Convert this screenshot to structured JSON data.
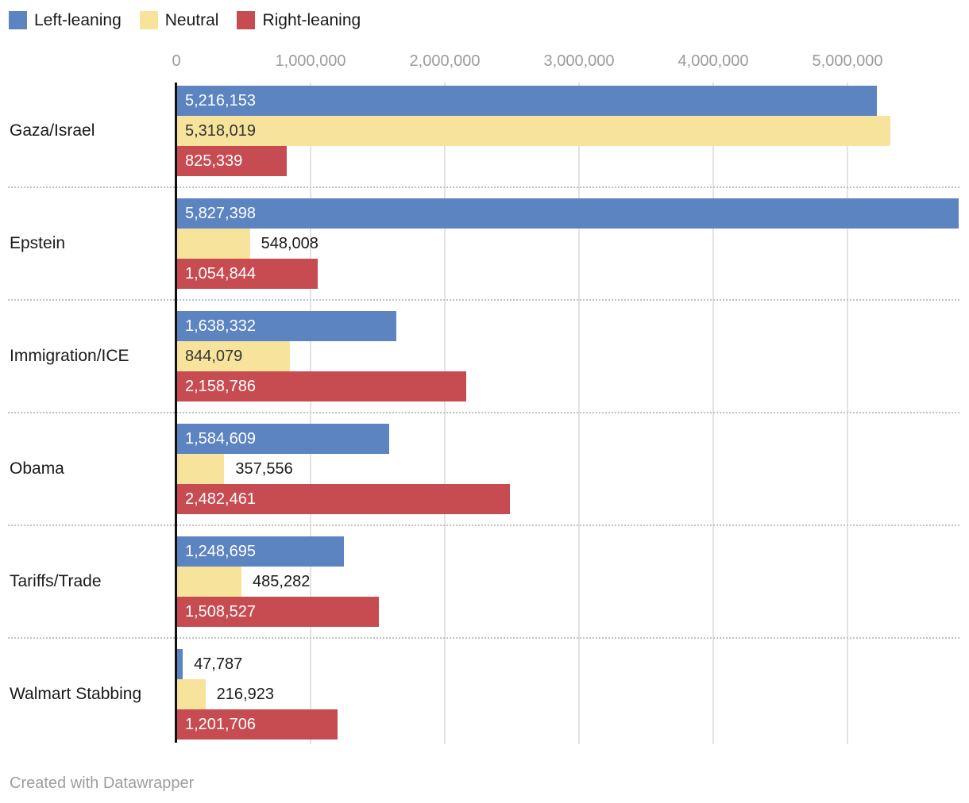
{
  "legend": {
    "items": [
      {
        "label": "Left-leaning",
        "color": "#5b84c0"
      },
      {
        "label": "Neutral",
        "color": "#f8e39c"
      },
      {
        "label": "Right-leaning",
        "color": "#c64c52"
      }
    ]
  },
  "chart_data": {
    "type": "bar",
    "orientation": "horizontal",
    "title": "",
    "categories": [
      "Gaza/Israel",
      "Epstein",
      "Immigration/ICE",
      "Obama",
      "Tariffs/Trade",
      "Walmart Stabbing"
    ],
    "series": [
      {
        "name": "Left-leaning",
        "color": "#5b84c0",
        "values": [
          5216153,
          5827398,
          1638332,
          1584609,
          1248695,
          47787
        ],
        "labels": [
          "5,216,153",
          "5,827,398",
          "1,638,332",
          "1,584,609",
          "1,248,695",
          "47,787"
        ]
      },
      {
        "name": "Neutral",
        "color": "#f8e39c",
        "values": [
          5318019,
          548008,
          844079,
          357556,
          485282,
          216923
        ],
        "labels": [
          "5,318,019",
          "548,008",
          "844,079",
          "357,556",
          "485,282",
          "216,923"
        ]
      },
      {
        "name": "Right-leaning",
        "color": "#c64c52",
        "values": [
          825339,
          1054844,
          2158786,
          2482461,
          1508527,
          1201706
        ],
        "labels": [
          "825,339",
          "1,054,844",
          "2,158,786",
          "2,482,461",
          "1,508,527",
          "1,201,706"
        ]
      }
    ],
    "x_ticks": [
      {
        "value": 0,
        "label": "0"
      },
      {
        "value": 1000000,
        "label": "1,000,000"
      },
      {
        "value": 2000000,
        "label": "2,000,000"
      },
      {
        "value": 3000000,
        "label": "3,000,000"
      },
      {
        "value": 4000000,
        "label": "4,000,000"
      },
      {
        "value": 5000000,
        "label": "5,000,000"
      }
    ],
    "xlim": [
      0,
      5905000
    ],
    "grid": true,
    "legend_position": "top-left",
    "label_colors": {
      "inside_on_dark": "#ffffff",
      "inside_on_light": "#333333",
      "outside": "#1a1a1a"
    }
  },
  "footer": {
    "credit": "Created with Datawrapper"
  }
}
